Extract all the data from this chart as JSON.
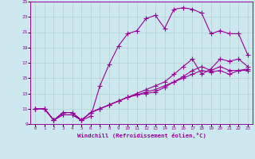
{
  "xlabel": "Windchill (Refroidissement éolien,°C)",
  "xlim": [
    -0.5,
    23.5
  ],
  "ylim": [
    9,
    25
  ],
  "xticks": [
    0,
    1,
    2,
    3,
    4,
    5,
    6,
    7,
    8,
    9,
    10,
    11,
    12,
    13,
    14,
    15,
    16,
    17,
    18,
    19,
    20,
    21,
    22,
    23
  ],
  "yticks": [
    9,
    11,
    13,
    15,
    17,
    19,
    21,
    23,
    25
  ],
  "background_color": "#cce8ee",
  "grid_color": "#aacccc",
  "line_color": "#990099",
  "line1_x": [
    0,
    1,
    2,
    3,
    4,
    5,
    6,
    7,
    8,
    9,
    10,
    11,
    12,
    13,
    14,
    15,
    16,
    17,
    18,
    19,
    20,
    21,
    22,
    23
  ],
  "line1_y": [
    11,
    11,
    9.5,
    10.5,
    10.5,
    9.5,
    10,
    14,
    16.8,
    19.2,
    20.8,
    21.2,
    22.8,
    23.2,
    21.5,
    24,
    24.2,
    24,
    23.5,
    20.8,
    21.2,
    20.8,
    20.8,
    18.0
  ],
  "line2_x": [
    0,
    1,
    2,
    3,
    4,
    5,
    6,
    7,
    8,
    9,
    10,
    11,
    12,
    13,
    14,
    15,
    16,
    17,
    18,
    19,
    20,
    21,
    22,
    23
  ],
  "line2_y": [
    11,
    11,
    9.5,
    10.5,
    10.5,
    9.5,
    10.5,
    11,
    11.5,
    12,
    12.5,
    13,
    13.5,
    14,
    14.5,
    15.5,
    16.5,
    17.5,
    15.5,
    16.2,
    17.5,
    17.2,
    17.5,
    16.5
  ],
  "line3_x": [
    0,
    1,
    2,
    3,
    4,
    5,
    6,
    7,
    8,
    9,
    10,
    11,
    12,
    13,
    14,
    15,
    16,
    17,
    18,
    19,
    20,
    21,
    22,
    23
  ],
  "line3_y": [
    11,
    11,
    9.5,
    10.2,
    10.2,
    9.5,
    10.5,
    11,
    11.5,
    12,
    12.5,
    12.8,
    13.2,
    13.5,
    14,
    14.5,
    15.2,
    16,
    16.5,
    16,
    16.5,
    16,
    16,
    16.2
  ],
  "line4_x": [
    0,
    1,
    2,
    3,
    4,
    5,
    6,
    7,
    8,
    9,
    10,
    11,
    12,
    13,
    14,
    15,
    16,
    17,
    18,
    19,
    20,
    21,
    22,
    23
  ],
  "line4_y": [
    11,
    11,
    9.5,
    10.2,
    10.2,
    9.5,
    10.5,
    11,
    11.5,
    12,
    12.5,
    12.8,
    13,
    13.2,
    13.8,
    14.5,
    15,
    15.5,
    16,
    15.8,
    16,
    15.5,
    16,
    16
  ]
}
